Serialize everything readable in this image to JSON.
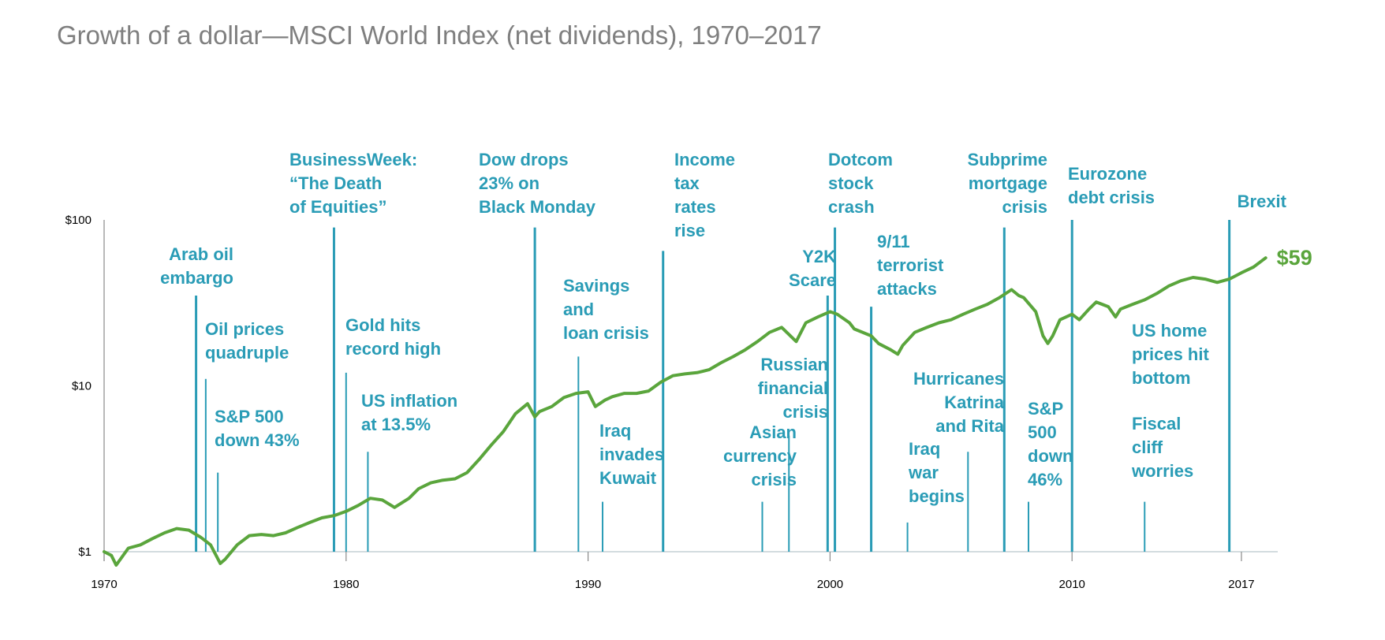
{
  "chart_data": {
    "type": "line",
    "title": "Growth of a dollar—MSCI World Index (net dividends), 1970–2017",
    "xlabel": "",
    "ylabel": "",
    "yscale": "log",
    "ylim": [
      1,
      100
    ],
    "xlim": [
      1970,
      2018.5
    ],
    "y_ticks": [
      {
        "value": 1,
        "label": "$1"
      },
      {
        "value": 10,
        "label": "$10"
      },
      {
        "value": 100,
        "label": "$100"
      }
    ],
    "x_ticks": [
      {
        "value": 1970,
        "label": "1970"
      },
      {
        "value": 1980,
        "label": "1980"
      },
      {
        "value": 1990,
        "label": "1990"
      },
      {
        "value": 2000,
        "label": "2000"
      },
      {
        "value": 2010,
        "label": "2010"
      },
      {
        "value": 2017,
        "label": "2017"
      }
    ],
    "series": [
      {
        "name": "MSCI World Index (net dividends)",
        "color": "#5aa53c",
        "end_label": "$59",
        "x": [
          1970.0,
          1970.3,
          1970.5,
          1971.0,
          1971.5,
          1972.0,
          1972.5,
          1973.0,
          1973.5,
          1974.0,
          1974.4,
          1974.8,
          1975.0,
          1975.5,
          1976.0,
          1976.5,
          1977.0,
          1977.5,
          1978.0,
          1978.5,
          1979.0,
          1979.5,
          1980.0,
          1980.5,
          1981.0,
          1981.5,
          1982.0,
          1982.6,
          1983.0,
          1983.5,
          1984.0,
          1984.5,
          1985.0,
          1985.5,
          1986.0,
          1986.5,
          1987.0,
          1987.5,
          1987.8,
          1988.0,
          1988.5,
          1989.0,
          1989.5,
          1990.0,
          1990.3,
          1990.7,
          1991.0,
          1991.5,
          1992.0,
          1992.5,
          1993.0,
          1993.5,
          1994.0,
          1994.5,
          1995.0,
          1995.5,
          1996.0,
          1996.5,
          1997.0,
          1997.5,
          1998.0,
          1998.6,
          1999.0,
          1999.5,
          2000.0,
          2000.3,
          2000.8,
          2001.0,
          2001.7,
          2002.0,
          2002.5,
          2002.8,
          2003.0,
          2003.5,
          2004.0,
          2004.5,
          2005.0,
          2005.5,
          2006.0,
          2006.5,
          2007.0,
          2007.5,
          2007.8,
          2008.0,
          2008.5,
          2008.8,
          2009.0,
          2009.2,
          2009.5,
          2010.0,
          2010.3,
          2010.7,
          2011.0,
          2011.5,
          2011.8,
          2012.0,
          2012.5,
          2013.0,
          2013.5,
          2014.0,
          2014.5,
          2015.0,
          2015.5,
          2016.0,
          2016.5,
          2017.0,
          2017.5,
          2018.0
        ],
        "values": [
          1.0,
          0.95,
          0.83,
          1.05,
          1.1,
          1.2,
          1.3,
          1.38,
          1.35,
          1.22,
          1.1,
          0.85,
          0.9,
          1.1,
          1.25,
          1.27,
          1.25,
          1.3,
          1.4,
          1.5,
          1.6,
          1.65,
          1.75,
          1.9,
          2.1,
          2.05,
          1.85,
          2.1,
          2.4,
          2.6,
          2.7,
          2.75,
          3.0,
          3.6,
          4.4,
          5.3,
          6.8,
          7.8,
          6.5,
          7.0,
          7.5,
          8.5,
          9.0,
          9.2,
          7.5,
          8.2,
          8.6,
          9.0,
          9.0,
          9.3,
          10.5,
          11.5,
          11.8,
          12.0,
          12.5,
          13.8,
          15.0,
          16.5,
          18.5,
          21.0,
          22.5,
          18.5,
          24.0,
          26.0,
          28.0,
          27.0,
          24.0,
          22.0,
          20.0,
          18.0,
          16.5,
          15.5,
          17.5,
          21.0,
          22.5,
          24.0,
          25.0,
          27.0,
          29.0,
          31.0,
          34.0,
          38.0,
          35.0,
          34.0,
          28.0,
          20.0,
          18.0,
          20.0,
          25.0,
          27.0,
          25.0,
          29.0,
          32.0,
          30.0,
          26.0,
          29.0,
          31.0,
          33.0,
          36.0,
          40.0,
          43.0,
          45.0,
          44.0,
          42.0,
          44.0,
          48.0,
          52.0,
          59.0
        ]
      }
    ],
    "events": [
      {
        "year": 1973.8,
        "top": 35,
        "lines": [
          "Arab oil",
          "embargo"
        ]
      },
      {
        "year": 1974.2,
        "top": 11,
        "lines": [
          "Oil prices",
          "quadruple"
        ]
      },
      {
        "year": 1974.7,
        "top": 3,
        "lines": [
          "S&P 500",
          "down 43%"
        ]
      },
      {
        "year": 1979.5,
        "top": 90,
        "lines": [
          "BusinessWeek:",
          "“The Death",
          "of Equities”"
        ]
      },
      {
        "year": 1980.0,
        "top": 12,
        "lines": [
          "Gold hits",
          "record high"
        ]
      },
      {
        "year": 1980.9,
        "top": 4,
        "lines": [
          "US inflation",
          "at 13.5%"
        ]
      },
      {
        "year": 1987.8,
        "top": 90,
        "lines": [
          "Dow drops",
          "23% on",
          "Black Monday"
        ]
      },
      {
        "year": 1989.6,
        "top": 15,
        "lines": [
          "Savings",
          "and",
          "loan crisis"
        ]
      },
      {
        "year": 1990.6,
        "top": 2,
        "lines": [
          "Iraq",
          "invades",
          "Kuwait"
        ]
      },
      {
        "year": 1993.1,
        "top": 65,
        "lines": [
          "Income",
          "tax",
          "rates",
          "rise"
        ]
      },
      {
        "year": 1997.2,
        "top": 2,
        "lines": [
          "Asian",
          "currency",
          "crisis"
        ]
      },
      {
        "year": 1998.3,
        "top": 5,
        "lines": [
          "Russian",
          "financial",
          "crisis"
        ]
      },
      {
        "year": 1999.9,
        "top": 35,
        "lines": [
          "Y2K",
          "Scare"
        ]
      },
      {
        "year": 2000.2,
        "top": 90,
        "lines": [
          "Dotcom",
          "stock",
          "crash"
        ]
      },
      {
        "year": 2001.7,
        "top": 30,
        "lines": [
          "9/11",
          "terrorist",
          "attacks"
        ]
      },
      {
        "year": 2003.2,
        "top": 1.5,
        "lines": [
          "Iraq",
          "war",
          "begins"
        ]
      },
      {
        "year": 2005.7,
        "top": 4,
        "lines": [
          "Hurricanes",
          "Katrina",
          "and Rita"
        ]
      },
      {
        "year": 2007.2,
        "top": 90,
        "lines": [
          "Subprime",
          "mortgage",
          "crisis"
        ]
      },
      {
        "year": 2008.2,
        "top": 2,
        "lines": [
          "S&P",
          "500",
          "down",
          "46%"
        ]
      },
      {
        "year": 2010.0,
        "top": 100,
        "lines": [
          "Eurozone",
          "debt crisis"
        ]
      },
      {
        "year": 2013.0,
        "top": 2,
        "lines": [
          "Fiscal",
          "cliff",
          "worries"
        ]
      },
      {
        "year": 2016.5,
        "top": 100,
        "lines": [
          "Brexit"
        ]
      },
      {
        "year": 2012.0,
        "top": null,
        "lines": [
          "US home",
          "prices hit",
          "bottom"
        ]
      }
    ]
  }
}
